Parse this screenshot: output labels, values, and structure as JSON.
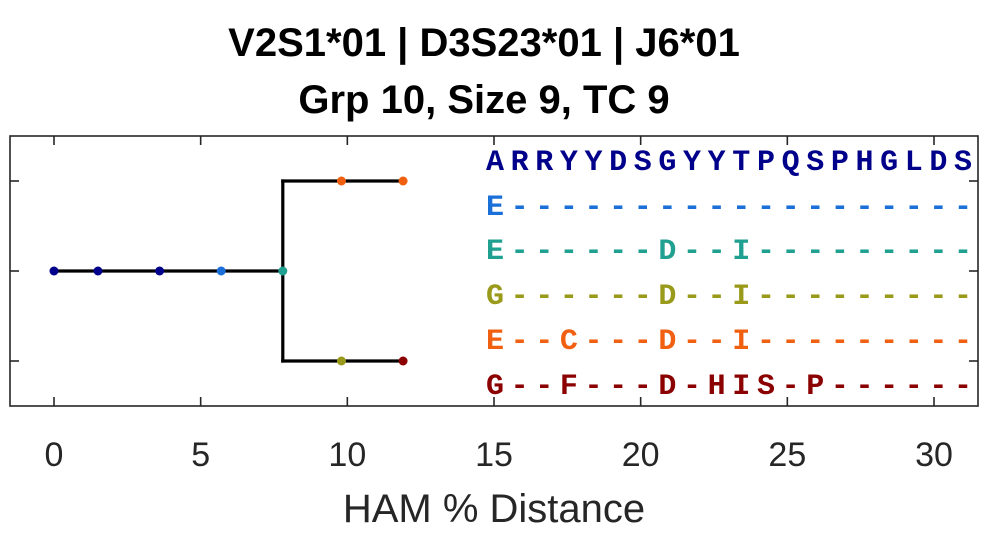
{
  "title_line1": "V2S1*01 | D3S23*01 | J6*01",
  "title_line2": "Grp 10, Size 9, TC 9",
  "chart_data": {
    "type": "tree",
    "xlabel": "HAM % Distance",
    "xlim": [
      -1.5,
      31.5
    ],
    "ylim": [
      0.5,
      3.5
    ],
    "xticks": [
      0,
      5,
      10,
      15,
      20,
      25,
      30
    ],
    "xtick_labels": [
      "0",
      "5",
      "10",
      "15",
      "20",
      "25",
      "30"
    ],
    "yticks": [
      1,
      2,
      3
    ],
    "grid": false,
    "edges": [
      {
        "x": [
          0,
          7.8
        ],
        "y": [
          2,
          2
        ]
      },
      {
        "x": [
          7.8,
          7.8
        ],
        "y": [
          1,
          3
        ]
      },
      {
        "x": [
          7.8,
          11.9
        ],
        "y": [
          3,
          3
        ]
      },
      {
        "x": [
          7.8,
          11.9
        ],
        "y": [
          1,
          1
        ]
      }
    ],
    "nodes": [
      {
        "x": 0,
        "y": 2,
        "color": "#00008b"
      },
      {
        "x": 1.5,
        "y": 2,
        "color": "#00008b"
      },
      {
        "x": 3.6,
        "y": 2,
        "color": "#00008b"
      },
      {
        "x": 5.7,
        "y": 2,
        "color": "#1a6fd8"
      },
      {
        "x": 7.8,
        "y": 2,
        "color": "#20a090"
      },
      {
        "x": 9.8,
        "y": 3,
        "color": "#f06010"
      },
      {
        "x": 11.9,
        "y": 3,
        "color": "#f06010"
      },
      {
        "x": 9.8,
        "y": 1,
        "color": "#9a9a1a"
      },
      {
        "x": 11.9,
        "y": 1,
        "color": "#8b0000"
      }
    ],
    "sequences": [
      {
        "text": "ARRYYDSGYYTPQSPHGLDS",
        "color": "#00008b"
      },
      {
        "text": "E-------------------",
        "color": "#1a6fd8"
      },
      {
        "text": "E------D--I---------",
        "color": "#20a090"
      },
      {
        "text": "G------D--I---------",
        "color": "#9a9a1a"
      },
      {
        "text": "E--C---D--I---------",
        "color": "#f06010"
      },
      {
        "text": "G--F---D-HIS-P------",
        "color": "#8b0000"
      }
    ]
  }
}
